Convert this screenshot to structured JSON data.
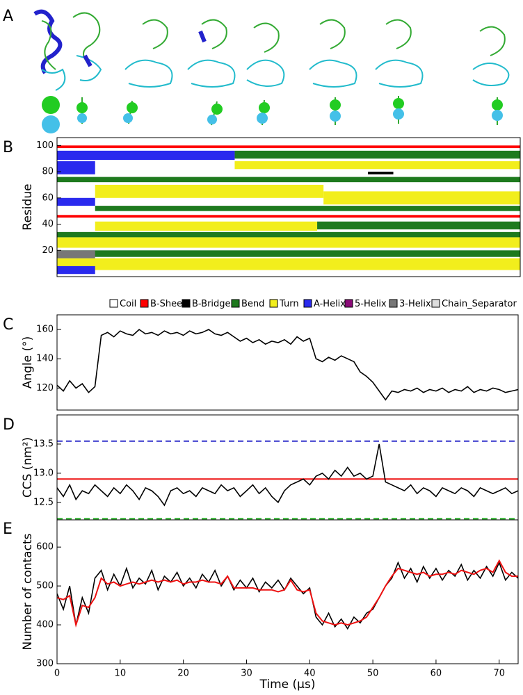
{
  "panel_a": {
    "label": "A"
  },
  "chart_data": [
    {
      "type": "heatmap",
      "panel": "B",
      "ylabel": "Residue",
      "xlim": [
        0,
        73
      ],
      "ylim": [
        0,
        106
      ],
      "yticks": [
        20,
        40,
        60,
        80,
        100
      ],
      "states": [
        {
          "name": "Coil",
          "color": "#ffffff"
        },
        {
          "name": "B-Sheet",
          "color": "#ff0000"
        },
        {
          "name": "B-Bridge",
          "color": "#000000"
        },
        {
          "name": "Bend",
          "color": "#1e7a1e"
        },
        {
          "name": "Turn",
          "color": "#f2ee1c"
        },
        {
          "name": "A-Helix",
          "color": "#2a2aee"
        },
        {
          "name": "5-Helix",
          "color": "#8b0a78"
        },
        {
          "name": "3-Helix",
          "color": "#777777"
        },
        {
          "name": "Chain_Separator",
          "color": "#dddddd"
        }
      ],
      "blocks": [
        [
          0,
          73,
          98,
          100,
          1
        ],
        [
          0,
          73,
          45,
          47,
          1
        ],
        [
          28,
          73,
          82,
          88,
          4
        ],
        [
          6,
          42,
          60,
          70,
          4
        ],
        [
          42,
          73,
          55,
          65,
          4
        ],
        [
          0,
          73,
          5,
          14,
          4
        ],
        [
          6,
          41,
          35,
          42,
          4
        ],
        [
          0,
          73,
          22,
          30,
          4
        ],
        [
          28,
          73,
          90,
          96,
          3
        ],
        [
          0,
          73,
          72,
          76,
          3
        ],
        [
          6,
          73,
          50,
          54,
          3
        ],
        [
          0,
          73,
          30,
          34,
          3
        ],
        [
          41,
          73,
          36,
          42,
          3
        ],
        [
          0,
          73,
          15,
          20,
          3
        ],
        [
          0,
          28,
          89,
          96,
          5
        ],
        [
          0,
          6,
          78,
          88,
          5
        ],
        [
          0,
          6,
          54,
          60,
          5
        ],
        [
          0,
          6,
          2,
          8,
          5
        ],
        [
          0,
          6,
          14,
          20,
          7
        ],
        [
          49,
          53,
          78,
          80,
          2
        ]
      ]
    },
    {
      "type": "line",
      "panel": "C",
      "ylabel": "Angle (°)",
      "xlim": [
        0,
        73
      ],
      "ylim": [
        105,
        170
      ],
      "yticks": [
        120,
        140,
        160
      ],
      "x": [
        0,
        1,
        2,
        3,
        4,
        5,
        6,
        7,
        8,
        9,
        10,
        11,
        12,
        13,
        14,
        15,
        16,
        17,
        18,
        19,
        20,
        21,
        22,
        23,
        24,
        25,
        26,
        27,
        28,
        29,
        30,
        31,
        32,
        33,
        34,
        35,
        36,
        37,
        38,
        39,
        40,
        41,
        42,
        43,
        44,
        45,
        46,
        47,
        48,
        49,
        50,
        51,
        52,
        53,
        54,
        55,
        56,
        57,
        58,
        59,
        60,
        61,
        62,
        63,
        64,
        65,
        66,
        67,
        68,
        69,
        70,
        71,
        72,
        73
      ],
      "series": [
        {
          "color": "#000000",
          "values": [
            122,
            118,
            125,
            120,
            123,
            117,
            121,
            156,
            158,
            155,
            159,
            157,
            156,
            160,
            157,
            158,
            156,
            159,
            157,
            158,
            156,
            159,
            157,
            158,
            160,
            157,
            156,
            158,
            155,
            152,
            154,
            151,
            153,
            150,
            152,
            151,
            153,
            150,
            155,
            152,
            154,
            140,
            138,
            141,
            139,
            142,
            140,
            138,
            131,
            128,
            124,
            118,
            112,
            118,
            117,
            119,
            118,
            120,
            117,
            119,
            118,
            120,
            117,
            119,
            118,
            121,
            117,
            119,
            118,
            120,
            119,
            117,
            118,
            119
          ]
        }
      ]
    },
    {
      "type": "line",
      "panel": "D",
      "ylabel": "CCS (nm²)",
      "xlim": [
        0,
        73
      ],
      "ylim": [
        12.2,
        14.0
      ],
      "yticks": [
        12.5,
        {
          "value": 13,
          "label": "13.0"
        },
        13.5
      ],
      "hlines": [
        {
          "value": 13.55,
          "color": "#3333cc",
          "dashed": true
        },
        {
          "value": 12.9,
          "color": "#ee1111",
          "dashed": false
        },
        {
          "value": 12.22,
          "color": "#22aa22",
          "dashed": true
        }
      ],
      "x": [
        0,
        1,
        2,
        3,
        4,
        5,
        6,
        7,
        8,
        9,
        10,
        11,
        12,
        13,
        14,
        15,
        16,
        17,
        18,
        19,
        20,
        21,
        22,
        23,
        24,
        25,
        26,
        27,
        28,
        29,
        30,
        31,
        32,
        33,
        34,
        35,
        36,
        37,
        38,
        39,
        40,
        41,
        42,
        43,
        44,
        45,
        46,
        47,
        48,
        49,
        50,
        51,
        52,
        53,
        54,
        55,
        56,
        57,
        58,
        59,
        60,
        61,
        62,
        63,
        64,
        65,
        66,
        67,
        68,
        69,
        70,
        71,
        72,
        73
      ],
      "series": [
        {
          "color": "#000000",
          "values": [
            12.75,
            12.6,
            12.8,
            12.55,
            12.7,
            12.65,
            12.8,
            12.7,
            12.6,
            12.75,
            12.65,
            12.8,
            12.7,
            12.55,
            12.75,
            12.7,
            12.6,
            12.45,
            12.7,
            12.75,
            12.65,
            12.7,
            12.6,
            12.75,
            12.7,
            12.65,
            12.8,
            12.7,
            12.75,
            12.6,
            12.7,
            12.8,
            12.65,
            12.75,
            12.6,
            12.5,
            12.7,
            12.8,
            12.85,
            12.9,
            12.8,
            12.95,
            13.0,
            12.9,
            13.05,
            12.95,
            13.1,
            12.95,
            13.0,
            12.9,
            12.95,
            13.5,
            12.85,
            12.8,
            12.75,
            12.7,
            12.8,
            12.65,
            12.75,
            12.7,
            12.6,
            12.75,
            12.7,
            12.65,
            12.75,
            12.7,
            12.6,
            12.75,
            12.7,
            12.65,
            12.7,
            12.75,
            12.65,
            12.7
          ]
        }
      ]
    },
    {
      "type": "line",
      "panel": "E",
      "ylabel": "Number of contacts",
      "xlabel": "Time (μs)",
      "xlim": [
        0,
        73
      ],
      "ylim": [
        300,
        670
      ],
      "yticks": [
        300,
        400,
        500,
        600
      ],
      "xticks": [
        0,
        10,
        20,
        30,
        40,
        50,
        60,
        70
      ],
      "x": [
        0,
        1,
        2,
        3,
        4,
        5,
        6,
        7,
        8,
        9,
        10,
        11,
        12,
        13,
        14,
        15,
        16,
        17,
        18,
        19,
        20,
        21,
        22,
        23,
        24,
        25,
        26,
        27,
        28,
        29,
        30,
        31,
        32,
        33,
        34,
        35,
        36,
        37,
        38,
        39,
        40,
        41,
        42,
        43,
        44,
        45,
        46,
        47,
        48,
        49,
        50,
        51,
        52,
        53,
        54,
        55,
        56,
        57,
        58,
        59,
        60,
        61,
        62,
        63,
        64,
        65,
        66,
        67,
        68,
        69,
        70,
        71,
        72,
        73
      ],
      "series": [
        {
          "color": "#000000",
          "values": [
            480,
            440,
            500,
            400,
            470,
            430,
            520,
            540,
            490,
            530,
            500,
            545,
            495,
            520,
            505,
            540,
            490,
            525,
            510,
            535,
            500,
            520,
            495,
            530,
            510,
            540,
            500,
            525,
            490,
            515,
            495,
            520,
            485,
            510,
            495,
            515,
            490,
            520,
            500,
            480,
            495,
            420,
            400,
            430,
            395,
            415,
            390,
            420,
            405,
            430,
            440,
            470,
            500,
            520,
            560,
            520,
            545,
            510,
            550,
            520,
            545,
            515,
            540,
            525,
            555,
            515,
            540,
            520,
            550,
            525,
            560,
            515,
            535,
            520
          ]
        },
        {
          "color": "#ee1111",
          "values": [
            470,
            465,
            475,
            400,
            450,
            445,
            470,
            520,
            505,
            510,
            500,
            505,
            510,
            505,
            510,
            515,
            510,
            515,
            510,
            515,
            505,
            510,
            510,
            515,
            510,
            510,
            505,
            525,
            495,
            495,
            495,
            495,
            490,
            490,
            490,
            485,
            490,
            515,
            490,
            485,
            490,
            430,
            410,
            405,
            400,
            405,
            400,
            405,
            410,
            420,
            445,
            470,
            500,
            525,
            545,
            540,
            535,
            530,
            535,
            525,
            530,
            530,
            535,
            530,
            540,
            535,
            530,
            540,
            545,
            535,
            565,
            535,
            525,
            525
          ]
        }
      ]
    }
  ]
}
